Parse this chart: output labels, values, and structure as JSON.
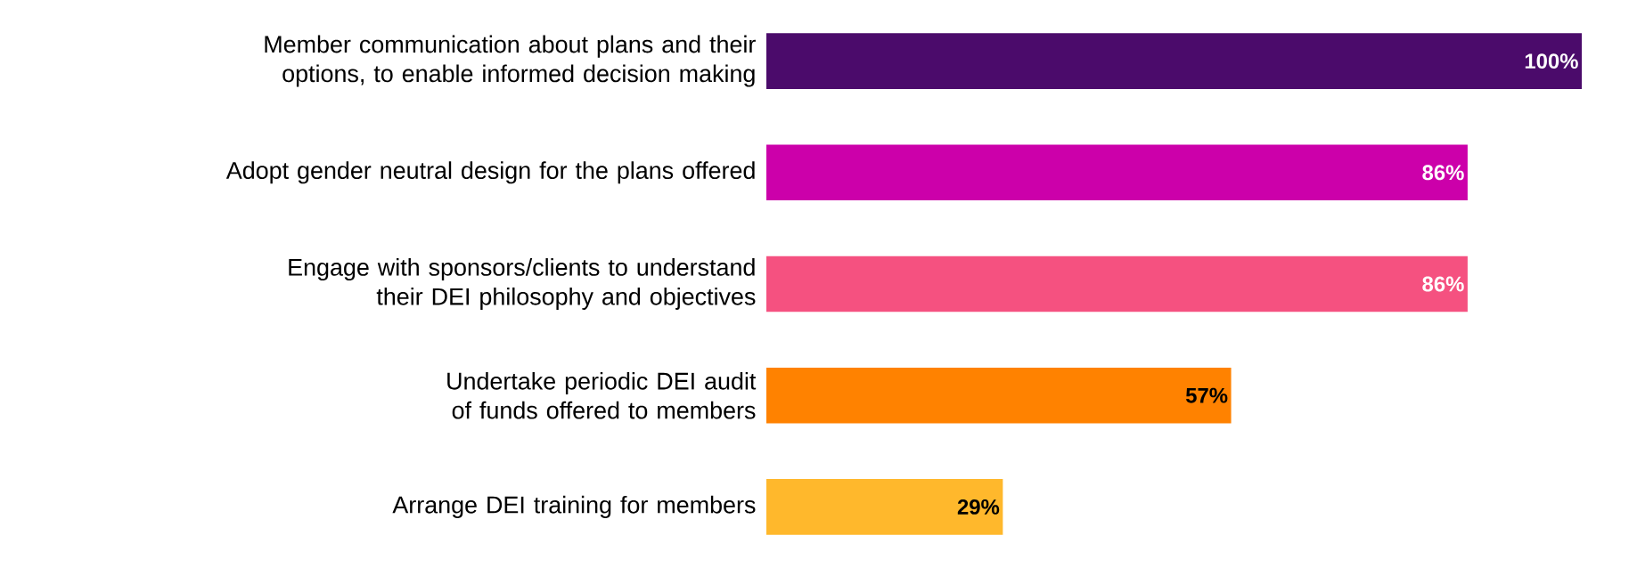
{
  "chart_data": {
    "type": "bar",
    "orientation": "horizontal",
    "categories": [
      "Member communication about plans and their options, to enable informed decision making",
      "Adopt gender neutral design for the plans offered",
      "Engage with sponsors/clients to understand their DEI philosophy and objectives",
      "Undertake periodic DEI audit of funds offered to members",
      "Arrange DEI training for members"
    ],
    "values": [
      100,
      86,
      86,
      57,
      29
    ],
    "colors": [
      "#4b0b6b",
      "#cc00aa",
      "#f55180",
      "#ff8200",
      "#ffb82c"
    ],
    "value_labels": [
      "100%",
      "86%",
      "86%",
      "57%",
      "29%"
    ]
  }
}
